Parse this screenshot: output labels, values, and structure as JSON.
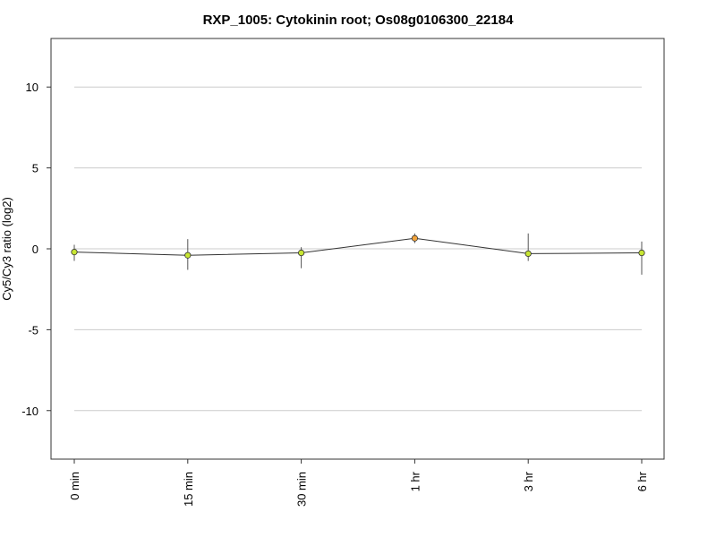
{
  "chart_data": {
    "type": "line",
    "title": "RXP_1005: Cytokinin root; Os08g0106300_22184",
    "xlabel": "",
    "ylabel": "Cy5/Cy3 ratio (log2)",
    "categories": [
      "0 min",
      "15 min",
      "30 min",
      "1 hr",
      "3 hr",
      "6 hr"
    ],
    "ylim": [
      -13,
      13
    ],
    "yticks": [
      10,
      5,
      0,
      -5,
      -10
    ],
    "ytick_labels": [
      "10",
      "5",
      "0",
      "-5",
      "-10"
    ],
    "grid": true,
    "series": [
      {
        "values": [
          -0.2,
          -0.4,
          -0.25,
          0.65,
          -0.3,
          -0.25
        ],
        "error_low": [
          -0.75,
          -1.3,
          -1.2,
          0.35,
          -0.75,
          -1.6
        ],
        "error_high": [
          0.25,
          0.6,
          0.1,
          0.95,
          0.95,
          0.45
        ],
        "marker_colors": [
          "#c8e633",
          "#c8e633",
          "#c8e633",
          "#f2a33a",
          "#c8e633",
          "#c8e633"
        ]
      }
    ],
    "colors": {
      "line": "#333333",
      "grid": "#cccccc",
      "frame": "#333333",
      "error_bar": "#555555",
      "marker_edge": "#333333"
    }
  }
}
